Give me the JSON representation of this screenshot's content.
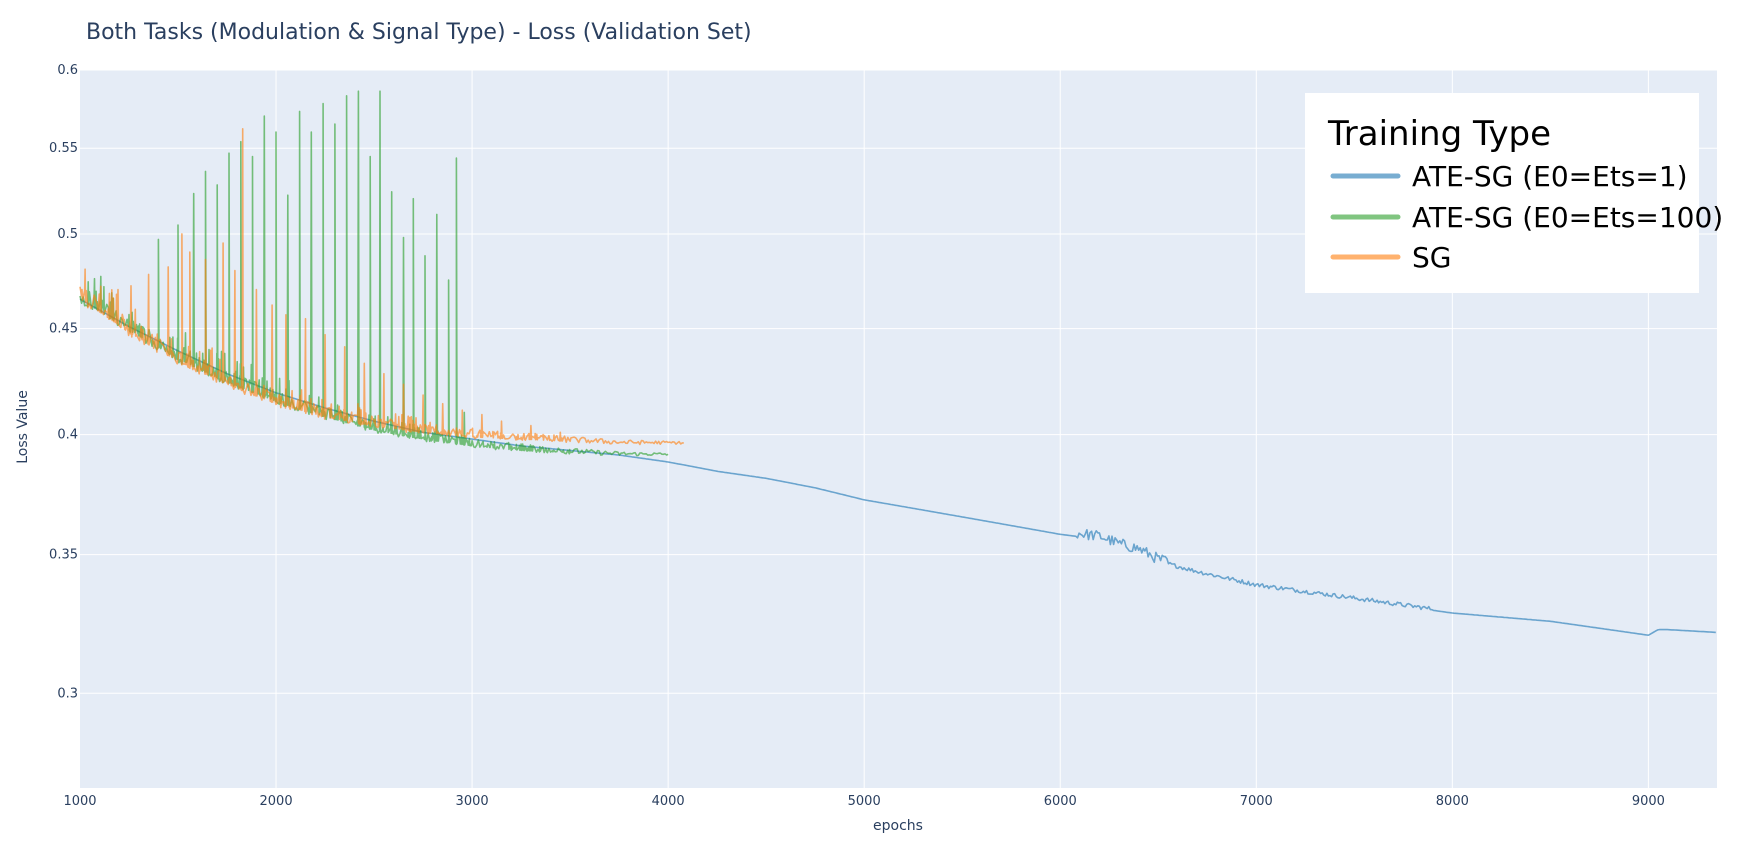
{
  "chart_data": {
    "type": "line",
    "title": "Both Tasks (Modulation & Signal Type) - Loss (Validation Set)",
    "xlabel": "epochs",
    "ylabel": "Loss Value",
    "xlim": [
      1000,
      9350
    ],
    "ylim": [
      0.27,
      0.6
    ],
    "y_scale": "log",
    "x_ticks": [
      1000,
      2000,
      3000,
      4000,
      5000,
      6000,
      7000,
      8000,
      9000
    ],
    "y_ticks": [
      0.3,
      0.35,
      0.4,
      0.45,
      0.5,
      0.55,
      0.6
    ],
    "y_tick_labels": [
      "0.3",
      "0.35",
      "0.4",
      "0.45",
      "0.5",
      "0.55",
      "0.6"
    ],
    "grid": true,
    "plot_background": "#e5ecf6",
    "legend": {
      "title": "Training Type",
      "position": "top-right"
    },
    "series": [
      {
        "name": "ATE-SG (E0=Ets=1)",
        "color": "#1f77b4",
        "x": [
          1000,
          1250,
          1500,
          1750,
          2000,
          2250,
          2500,
          2750,
          3000,
          3250,
          3500,
          3750,
          4000,
          4250,
          4500,
          4750,
          5000,
          5500,
          6000,
          6100,
          6200,
          6300,
          6400,
          6500,
          6700,
          7000,
          7200,
          7500,
          7800,
          8000,
          8500,
          9000,
          9050,
          9100,
          9350
        ],
        "y": [
          0.465,
          0.451,
          0.439,
          0.428,
          0.419,
          0.412,
          0.406,
          0.401,
          0.398,
          0.395,
          0.393,
          0.391,
          0.388,
          0.384,
          0.381,
          0.377,
          0.372,
          0.365,
          0.358,
          0.357,
          0.356,
          0.353,
          0.351,
          0.347,
          0.343,
          0.338,
          0.336,
          0.333,
          0.33,
          0.328,
          0.325,
          0.32,
          0.322,
          0.322,
          0.321
        ]
      },
      {
        "name": "ATE-SG (E0=Ets=100)",
        "color": "#2ca02c",
        "x": [
          1000,
          1250,
          1500,
          1750,
          2000,
          2250,
          2500,
          2750,
          3000,
          3250,
          3500,
          3750,
          4000
        ],
        "y": [
          0.465,
          0.449,
          0.435,
          0.424,
          0.415,
          0.408,
          0.402,
          0.398,
          0.395,
          0.393,
          0.392,
          0.391,
          0.391
        ],
        "peaks": [
          {
            "x": 1400,
            "y": 0.497
          },
          {
            "x": 1500,
            "y": 0.505
          },
          {
            "x": 1580,
            "y": 0.523
          },
          {
            "x": 1640,
            "y": 0.536
          },
          {
            "x": 1700,
            "y": 0.528
          },
          {
            "x": 1760,
            "y": 0.547
          },
          {
            "x": 1820,
            "y": 0.554
          },
          {
            "x": 1880,
            "y": 0.545
          },
          {
            "x": 1940,
            "y": 0.57
          },
          {
            "x": 2000,
            "y": 0.56
          },
          {
            "x": 2060,
            "y": 0.522
          },
          {
            "x": 2120,
            "y": 0.573
          },
          {
            "x": 2180,
            "y": 0.56
          },
          {
            "x": 2240,
            "y": 0.578
          },
          {
            "x": 2300,
            "y": 0.565
          },
          {
            "x": 2360,
            "y": 0.583
          },
          {
            "x": 2420,
            "y": 0.586
          },
          {
            "x": 2480,
            "y": 0.545
          },
          {
            "x": 2530,
            "y": 0.586
          },
          {
            "x": 2590,
            "y": 0.524
          },
          {
            "x": 2650,
            "y": 0.498
          },
          {
            "x": 2700,
            "y": 0.52
          },
          {
            "x": 2760,
            "y": 0.488
          },
          {
            "x": 2820,
            "y": 0.511
          },
          {
            "x": 2880,
            "y": 0.475
          },
          {
            "x": 2920,
            "y": 0.544
          },
          {
            "x": 2960,
            "y": 0.41
          }
        ]
      },
      {
        "name": "SG",
        "color": "#ff7f0e",
        "x": [
          1000,
          1250,
          1500,
          1750,
          2000,
          2250,
          2500,
          2750,
          3000,
          3250,
          3500,
          3750,
          4000,
          4080
        ],
        "y": [
          0.465,
          0.448,
          0.434,
          0.423,
          0.414,
          0.408,
          0.404,
          0.401,
          0.399,
          0.398,
          0.397,
          0.396,
          0.396,
          0.396
        ],
        "peaks": [
          {
            "x": 1150,
            "y": 0.468
          },
          {
            "x": 1260,
            "y": 0.472
          },
          {
            "x": 1350,
            "y": 0.478
          },
          {
            "x": 1450,
            "y": 0.482
          },
          {
            "x": 1520,
            "y": 0.5
          },
          {
            "x": 1560,
            "y": 0.49
          },
          {
            "x": 1640,
            "y": 0.486
          },
          {
            "x": 1730,
            "y": 0.495
          },
          {
            "x": 1790,
            "y": 0.48
          },
          {
            "x": 1830,
            "y": 0.562
          },
          {
            "x": 1900,
            "y": 0.47
          },
          {
            "x": 1980,
            "y": 0.462
          },
          {
            "x": 2050,
            "y": 0.457
          },
          {
            "x": 2150,
            "y": 0.455
          },
          {
            "x": 2250,
            "y": 0.447
          },
          {
            "x": 2350,
            "y": 0.441
          },
          {
            "x": 2450,
            "y": 0.433
          },
          {
            "x": 2550,
            "y": 0.428
          },
          {
            "x": 2650,
            "y": 0.423
          },
          {
            "x": 2750,
            "y": 0.418
          },
          {
            "x": 2850,
            "y": 0.414
          },
          {
            "x": 2950,
            "y": 0.411
          },
          {
            "x": 3050,
            "y": 0.409
          },
          {
            "x": 3150,
            "y": 0.406
          },
          {
            "x": 3300,
            "y": 0.404
          },
          {
            "x": 3450,
            "y": 0.401
          }
        ]
      }
    ]
  }
}
